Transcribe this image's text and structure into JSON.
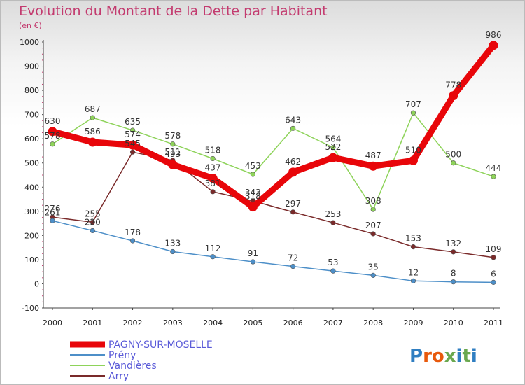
{
  "chart_data": {
    "type": "line",
    "title": "Evolution du Montant de la Dette par Habitant",
    "subtitle": "(en €)",
    "x": [
      "2000",
      "2001",
      "2002",
      "2003",
      "2004",
      "2005",
      "2006",
      "2007",
      "2008",
      "2009",
      "2010",
      "2011"
    ],
    "ylim": [
      -100,
      1000
    ],
    "yticks": [
      "-100",
      "0",
      "100",
      "200",
      "300",
      "400",
      "500",
      "600",
      "700",
      "800",
      "900",
      "1000"
    ],
    "grid": false,
    "legend_position": "bottom-left",
    "series": [
      {
        "name": "PAGNY-SUR-MOSELLE",
        "color": "#e8060a",
        "values": [
          630,
          586,
          574,
          493,
          437,
          318,
          462,
          522,
          487,
          510,
          778,
          986
        ],
        "labels": [
          "630",
          "586",
          "574",
          "493",
          "437",
          "318",
          "462",
          "522",
          "487",
          "510",
          "778",
          "986"
        ]
      },
      {
        "name": "Prény",
        "color": "#4d8fc8",
        "values": [
          261,
          220,
          178,
          133,
          112,
          91,
          72,
          53,
          35,
          12,
          8,
          6
        ],
        "labels": [
          "261",
          "220",
          "178",
          "133",
          "112",
          "91",
          "72",
          "53",
          "35",
          "12",
          "8",
          "6"
        ]
      },
      {
        "name": "Vandières",
        "color": "#8ed35a",
        "values": [
          578,
          687,
          635,
          578,
          518,
          453,
          643,
          564,
          308,
          707,
          500,
          444
        ],
        "labels": [
          "578",
          "687",
          "635",
          "578",
          "518",
          "453",
          "643",
          "564",
          "308",
          "707",
          "500",
          "444"
        ]
      },
      {
        "name": "Arry",
        "color": "#7a2a2a",
        "values": [
          276,
          255,
          545,
          511,
          381,
          343,
          297,
          253,
          207,
          153,
          132,
          109
        ],
        "labels": [
          "276",
          "255",
          "545",
          "511",
          "381",
          "343",
          "297",
          "253",
          "207",
          "153",
          "132",
          "109"
        ]
      }
    ]
  },
  "branding": {
    "logo_text": "Proxiti"
  }
}
